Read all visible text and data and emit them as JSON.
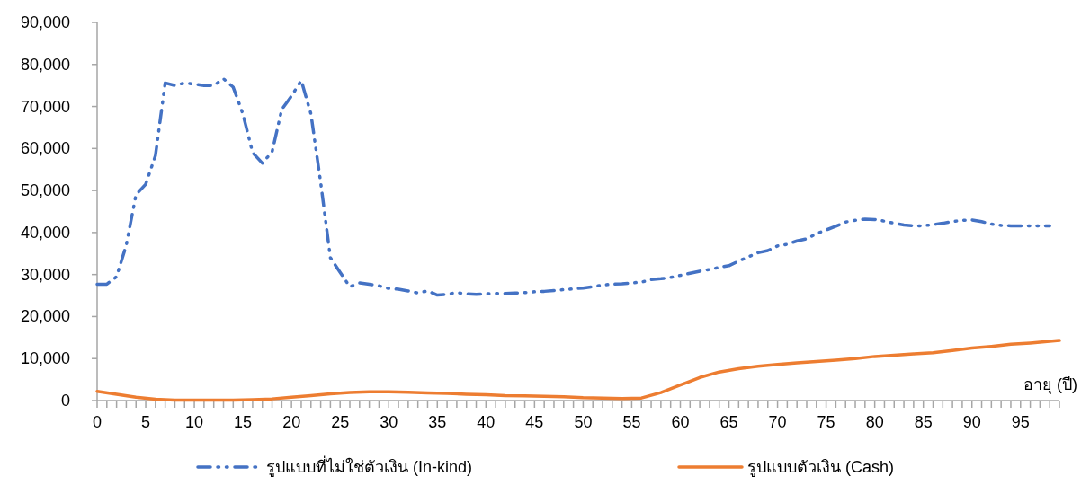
{
  "chart_data": {
    "type": "line",
    "xlabel": "อายุ (ปี)",
    "xlim": [
      0,
      99
    ],
    "ylim": [
      0,
      90000
    ],
    "xticks": [
      0,
      {
        "value": 1,
        "label": null
      },
      {
        "value": 2,
        "label": null
      },
      {
        "value": 3,
        "label": null
      },
      {
        "value": 4,
        "label": null
      },
      5,
      {
        "value": 6,
        "label": null
      },
      {
        "value": 7,
        "label": null
      },
      {
        "value": 8,
        "label": null
      },
      {
        "value": 9,
        "label": null
      },
      10,
      {
        "value": 11,
        "label": null
      },
      {
        "value": 12,
        "label": null
      },
      {
        "value": 13,
        "label": null
      },
      {
        "value": 14,
        "label": null
      },
      15,
      {
        "value": 16,
        "label": null
      },
      {
        "value": 17,
        "label": null
      },
      {
        "value": 18,
        "label": null
      },
      {
        "value": 19,
        "label": null
      },
      20,
      {
        "value": 21,
        "label": null
      },
      {
        "value": 22,
        "label": null
      },
      {
        "value": 23,
        "label": null
      },
      {
        "value": 24,
        "label": null
      },
      25,
      {
        "value": 26,
        "label": null
      },
      {
        "value": 27,
        "label": null
      },
      {
        "value": 28,
        "label": null
      },
      {
        "value": 29,
        "label": null
      },
      30,
      {
        "value": 31,
        "label": null
      },
      {
        "value": 32,
        "label": null
      },
      {
        "value": 33,
        "label": null
      },
      {
        "value": 34,
        "label": null
      },
      35,
      {
        "value": 36,
        "label": null
      },
      {
        "value": 37,
        "label": null
      },
      {
        "value": 38,
        "label": null
      },
      {
        "value": 39,
        "label": null
      },
      40,
      {
        "value": 41,
        "label": null
      },
      {
        "value": 42,
        "label": null
      },
      {
        "value": 43,
        "label": null
      },
      {
        "value": 44,
        "label": null
      },
      45,
      {
        "value": 46,
        "label": null
      },
      {
        "value": 47,
        "label": null
      },
      {
        "value": 48,
        "label": null
      },
      {
        "value": 49,
        "label": null
      },
      50,
      {
        "value": 51,
        "label": null
      },
      {
        "value": 52,
        "label": null
      },
      {
        "value": 53,
        "label": null
      },
      {
        "value": 54,
        "label": null
      },
      55,
      {
        "value": 56,
        "label": null
      },
      {
        "value": 57,
        "label": null
      },
      {
        "value": 58,
        "label": null
      },
      {
        "value": 59,
        "label": null
      },
      60,
      {
        "value": 61,
        "label": null
      },
      {
        "value": 62,
        "label": null
      },
      {
        "value": 63,
        "label": null
      },
      {
        "value": 64,
        "label": null
      },
      65,
      {
        "value": 66,
        "label": null
      },
      {
        "value": 67,
        "label": null
      },
      {
        "value": 68,
        "label": null
      },
      {
        "value": 69,
        "label": null
      },
      70,
      {
        "value": 71,
        "label": null
      },
      {
        "value": 72,
        "label": null
      },
      {
        "value": 73,
        "label": null
      },
      {
        "value": 74,
        "label": null
      },
      75,
      {
        "value": 76,
        "label": null
      },
      {
        "value": 77,
        "label": null
      },
      {
        "value": 78,
        "label": null
      },
      {
        "value": 79,
        "label": null
      },
      80,
      {
        "value": 81,
        "label": null
      },
      {
        "value": 82,
        "label": null
      },
      {
        "value": 83,
        "label": null
      },
      {
        "value": 84,
        "label": null
      },
      85,
      {
        "value": 86,
        "label": null
      },
      {
        "value": 87,
        "label": null
      },
      {
        "value": 88,
        "label": null
      },
      {
        "value": 89,
        "label": null
      },
      90,
      {
        "value": 91,
        "label": null
      },
      {
        "value": 92,
        "label": null
      },
      {
        "value": 93,
        "label": null
      },
      {
        "value": 94,
        "label": null
      },
      95,
      {
        "value": 96,
        "label": null
      },
      {
        "value": 97,
        "label": null
      },
      {
        "value": 98,
        "label": null
      },
      {
        "value": 99,
        "label": null
      }
    ],
    "yticks": [
      {
        "value": 0,
        "label": "0"
      },
      {
        "value": 10000,
        "label": "10,000"
      },
      {
        "value": 20000,
        "label": "20,000"
      },
      {
        "value": 30000,
        "label": "30,000"
      },
      {
        "value": 40000,
        "label": "40,000"
      },
      {
        "value": 50000,
        "label": "50,000"
      },
      {
        "value": 60000,
        "label": "60,000"
      },
      {
        "value": 70000,
        "label": "70,000"
      },
      {
        "value": 80000,
        "label": "80,000"
      },
      {
        "value": 90000,
        "label": "90,000"
      }
    ],
    "grid": false,
    "legend": "bottom",
    "marker": "none",
    "series": [
      {
        "name": "รูปแบบที่ไม่ใช่ตัวเงิน (In-kind)",
        "color": "#4472c4",
        "line_style": "dashed",
        "x": [
          0,
          1,
          2,
          3,
          4,
          5,
          6,
          7,
          8,
          9,
          10,
          11,
          12,
          13,
          14,
          15,
          16,
          17,
          18,
          19,
          20,
          21,
          22,
          23,
          24,
          25,
          26,
          27,
          28,
          29,
          30,
          31,
          32,
          33,
          34,
          35,
          36,
          37,
          38,
          39,
          40,
          41,
          42,
          43,
          44,
          45,
          46,
          47,
          48,
          49,
          50,
          51,
          52,
          53,
          54,
          55,
          56,
          57,
          58,
          59,
          60,
          61,
          62,
          63,
          64,
          65,
          66,
          67,
          68,
          69,
          70,
          71,
          72,
          73,
          74,
          75,
          76,
          77,
          78,
          79,
          80,
          81,
          82,
          83,
          84,
          85,
          86,
          87,
          88,
          89,
          90,
          91,
          92,
          93,
          94,
          95,
          96,
          97,
          98
        ],
        "values": [
          27700,
          27700,
          29500,
          37000,
          49000,
          51500,
          58300,
          75600,
          75000,
          75600,
          75300,
          75000,
          75000,
          76600,
          74600,
          68200,
          59000,
          56500,
          59200,
          69300,
          72500,
          76200,
          68200,
          51900,
          34000,
          30500,
          27100,
          28000,
          27700,
          27300,
          26700,
          26500,
          26100,
          25600,
          26100,
          25100,
          25300,
          25700,
          25400,
          25300,
          25400,
          25500,
          25500,
          25600,
          25700,
          25900,
          26000,
          26200,
          26400,
          26600,
          26800,
          27100,
          27500,
          27700,
          27800,
          28000,
          28200,
          28800,
          29000,
          29300,
          29800,
          30300,
          30800,
          31200,
          31700,
          32100,
          33200,
          34200,
          35200,
          35700,
          36800,
          37200,
          38000,
          38500,
          39700,
          40600,
          41500,
          42500,
          42900,
          43200,
          43100,
          42700,
          42200,
          41800,
          41600,
          41600,
          41900,
          42200,
          42600,
          42900,
          43000,
          42600,
          42000,
          41700,
          41600,
          41600,
          41600,
          41600,
          41600
        ]
      },
      {
        "name": "รูปแบบตัวเงิน (Cash)",
        "color": "#ed7d31",
        "line_style": "solid",
        "x": [
          0,
          2,
          4,
          6,
          8,
          10,
          12,
          14,
          16,
          18,
          20,
          22,
          24,
          26,
          28,
          30,
          32,
          34,
          36,
          38,
          40,
          42,
          44,
          46,
          48,
          50,
          52,
          54,
          56,
          58,
          60,
          62,
          64,
          66,
          68,
          70,
          72,
          74,
          76,
          78,
          80,
          82,
          84,
          86,
          88,
          90,
          92,
          94,
          96,
          99
        ],
        "values": [
          2200,
          1500,
          800,
          300,
          100,
          100,
          100,
          100,
          200,
          400,
          800,
          1200,
          1600,
          1900,
          2100,
          2100,
          2000,
          1800,
          1700,
          1500,
          1400,
          1200,
          1100,
          1000,
          900,
          700,
          600,
          500,
          600,
          1900,
          3700,
          5500,
          6800,
          7600,
          8200,
          8600,
          9000,
          9300,
          9600,
          10000,
          10500,
          10800,
          11100,
          11400,
          11900,
          12500,
          12900,
          13400,
          13700,
          14300
        ]
      }
    ]
  }
}
